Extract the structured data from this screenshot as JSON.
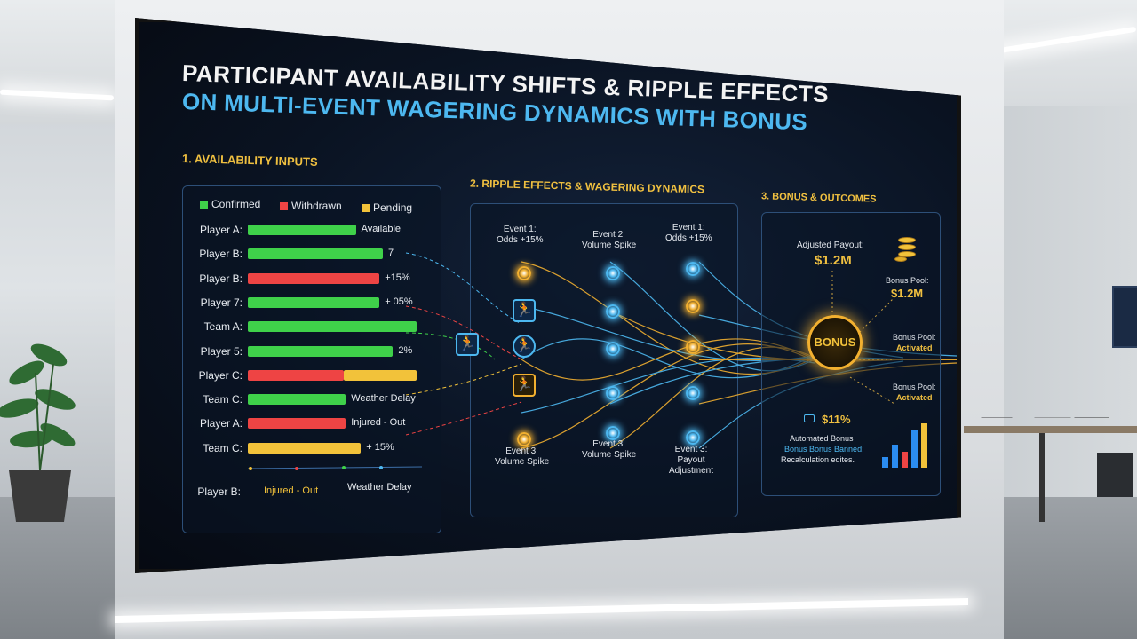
{
  "title_line1": "PARTICIPANT AVAILABILITY SHIFTS & RIPPLE EFFECTS",
  "title_line2": "ON MULTI-EVENT WAGERING DYNAMICS WITH BONUS",
  "section1": {
    "title": "1. AVAILABILITY INPUTS",
    "legend": [
      {
        "label": "Confirmed",
        "color": "#3fd14a"
      },
      {
        "label": "Withdrawn",
        "color": "#ee4444"
      },
      {
        "label": "Pending",
        "color": "#f2c23a"
      }
    ],
    "rows": [
      {
        "label": "Player A:",
        "segments": [
          {
            "color": "#3fd14a",
            "fraction": 1.0
          }
        ],
        "length": 0.64,
        "value": "Available"
      },
      {
        "label": "Player B:",
        "segments": [
          {
            "color": "#3fd14a",
            "fraction": 1.0
          }
        ],
        "length": 0.8,
        "value": "7"
      },
      {
        "label": "Player B:",
        "segments": [
          {
            "color": "#ee4444",
            "fraction": 1.0
          }
        ],
        "length": 0.78,
        "value": "+15%"
      },
      {
        "label": "Player 7:",
        "segments": [
          {
            "color": "#3fd14a",
            "fraction": 1.0
          }
        ],
        "length": 0.78,
        "value": "+ 05%"
      },
      {
        "label": "Team  A:",
        "segments": [
          {
            "color": "#3fd14a",
            "fraction": 1.0
          }
        ],
        "length": 1.0,
        "value": ""
      },
      {
        "label": "Player 5:",
        "segments": [
          {
            "color": "#3fd14a",
            "fraction": 1.0
          }
        ],
        "length": 0.86,
        "value": "2%"
      },
      {
        "label": "Player C:",
        "segments": [
          {
            "color": "#ee4444",
            "fraction": 0.57
          },
          {
            "color": "#f2c23a",
            "fraction": 0.43
          }
        ],
        "length": 1.0,
        "value": ""
      },
      {
        "label": "Team C:",
        "segments": [
          {
            "color": "#3fd14a",
            "fraction": 1.0
          }
        ],
        "length": 0.58,
        "value": "Weather Delay"
      },
      {
        "label": "Player A:",
        "segments": [
          {
            "color": "#ee4444",
            "fraction": 1.0
          }
        ],
        "length": 0.58,
        "value": "Injured - Out"
      },
      {
        "label": "Team C:",
        "segments": [
          {
            "color": "#f2c23a",
            "fraction": 1.0
          }
        ],
        "length": 0.67,
        "value": "+ 15%"
      }
    ],
    "footer": {
      "label": "Player B:",
      "status1": "Injured - Out",
      "status2": "Weather Delay"
    }
  },
  "section2": {
    "title": "2. RIPPLE EFFECTS & WAGERING DYNAMICS",
    "top_labels": [
      "Event 1:\nOdds +15%",
      "Event 2:\nVolume Spike",
      "Event 1:\nOdds +15%"
    ],
    "bottom_labels": [
      "Event 3:\nVolume Spike",
      "Event 3:\nVolume Spike",
      "Event 3:\nPayout\nAdjustment"
    ]
  },
  "section3": {
    "title": "3. BONUS & OUTCOMES",
    "adjusted_payout_label": "Adjusted Payout:",
    "adjusted_payout_value": "$1.2M",
    "bonus_pool1_label": "Bonus Pool:",
    "bonus_pool1_value": "$1.2M",
    "bonus_pool2_label": "Bonus Pool:",
    "bonus_pool2_value": "Activated",
    "bonus_pool3_label": "Bonus Pool:",
    "bonus_pool3_value": "Activated",
    "bonus_badge": "BONUS",
    "percent_value": "$11%",
    "automated_label": "Automated Bonus",
    "automated_sub": "Bonus Bonus Banned:",
    "recalc_label": "Recalculation edites."
  }
}
